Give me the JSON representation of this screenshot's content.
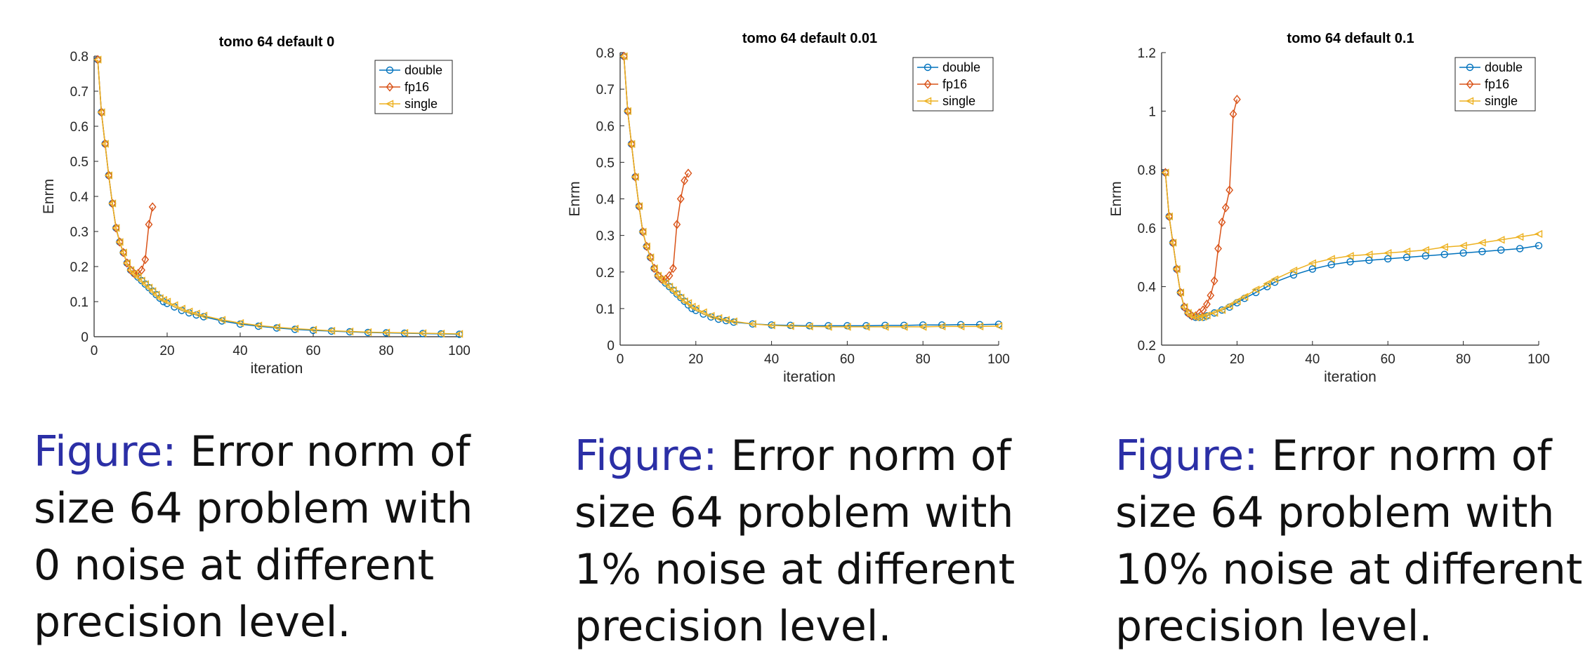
{
  "chart_data": [
    {
      "type": "line",
      "title": "tomo 64 default 0",
      "xlabel": "iteration",
      "ylabel": "Enrm",
      "xlim": [
        0,
        100
      ],
      "ylim": [
        0,
        0.8
      ],
      "xticks": [
        0,
        20,
        40,
        60,
        80,
        100
      ],
      "yticks": [
        0,
        0.1,
        0.2,
        0.3,
        0.4,
        0.5,
        0.6,
        0.7,
        0.8
      ],
      "xtick_labels": [
        "0",
        "20",
        "40",
        "60",
        "80",
        "100"
      ],
      "ytick_labels": [
        "0",
        "0.1",
        "0.2",
        "0.3",
        "0.4",
        "0.5",
        "0.6",
        "0.7",
        "0.8"
      ],
      "legend": "top-right",
      "series": [
        {
          "name": "double",
          "color": "#0072BD",
          "marker": "circle",
          "x": [
            1,
            2,
            3,
            4,
            5,
            6,
            7,
            8,
            9,
            10,
            11,
            12,
            13,
            14,
            15,
            16,
            17,
            18,
            19,
            20,
            22,
            24,
            26,
            28,
            30,
            35,
            40,
            45,
            50,
            55,
            60,
            65,
            70,
            75,
            80,
            85,
            90,
            95,
            100
          ],
          "values": [
            0.79,
            0.64,
            0.55,
            0.46,
            0.38,
            0.31,
            0.27,
            0.24,
            0.21,
            0.19,
            0.18,
            0.17,
            0.16,
            0.15,
            0.14,
            0.13,
            0.12,
            0.11,
            0.1,
            0.095,
            0.085,
            0.075,
            0.068,
            0.062,
            0.057,
            0.045,
            0.036,
            0.03,
            0.025,
            0.021,
            0.018,
            0.016,
            0.014,
            0.012,
            0.011,
            0.01,
            0.009,
            0.008,
            0.007
          ]
        },
        {
          "name": "fp16",
          "color": "#D95319",
          "marker": "diamond",
          "x": [
            1,
            2,
            3,
            4,
            5,
            6,
            7,
            8,
            9,
            10,
            11,
            12,
            13,
            14,
            15,
            16
          ],
          "values": [
            0.79,
            0.64,
            0.55,
            0.46,
            0.38,
            0.31,
            0.27,
            0.24,
            0.21,
            0.19,
            0.18,
            0.18,
            0.19,
            0.22,
            0.32,
            0.37
          ]
        },
        {
          "name": "single",
          "color": "#EDB120",
          "marker": "triangle-left",
          "x": [
            1,
            2,
            3,
            4,
            5,
            6,
            7,
            8,
            9,
            10,
            11,
            12,
            13,
            14,
            15,
            16,
            17,
            18,
            19,
            20,
            22,
            24,
            26,
            28,
            30,
            35,
            40,
            45,
            50,
            55,
            60,
            65,
            70,
            75,
            80,
            85,
            90,
            95,
            100
          ],
          "values": [
            0.79,
            0.64,
            0.55,
            0.46,
            0.38,
            0.31,
            0.27,
            0.24,
            0.21,
            0.19,
            0.18,
            0.17,
            0.16,
            0.15,
            0.14,
            0.13,
            0.12,
            0.11,
            0.105,
            0.1,
            0.09,
            0.08,
            0.072,
            0.066,
            0.06,
            0.048,
            0.039,
            0.032,
            0.027,
            0.023,
            0.02,
            0.017,
            0.015,
            0.013,
            0.012,
            0.011,
            0.01,
            0.009,
            0.008
          ]
        }
      ]
    },
    {
      "type": "line",
      "title": "tomo 64 default 0.01",
      "xlabel": "iteration",
      "ylabel": "Enrm",
      "xlim": [
        0,
        100
      ],
      "ylim": [
        0,
        0.8
      ],
      "xticks": [
        0,
        20,
        40,
        60,
        80,
        100
      ],
      "yticks": [
        0,
        0.1,
        0.2,
        0.3,
        0.4,
        0.5,
        0.6,
        0.7,
        0.8
      ],
      "xtick_labels": [
        "0",
        "20",
        "40",
        "60",
        "80",
        "100"
      ],
      "ytick_labels": [
        "0",
        "0.1",
        "0.2",
        "0.3",
        "0.4",
        "0.5",
        "0.6",
        "0.7",
        "0.8"
      ],
      "legend": "top-right",
      "series": [
        {
          "name": "double",
          "color": "#0072BD",
          "marker": "circle",
          "x": [
            1,
            2,
            3,
            4,
            5,
            6,
            7,
            8,
            9,
            10,
            11,
            12,
            13,
            14,
            15,
            16,
            17,
            18,
            19,
            20,
            22,
            24,
            26,
            28,
            30,
            35,
            40,
            45,
            50,
            55,
            60,
            65,
            70,
            75,
            80,
            85,
            90,
            95,
            100
          ],
          "values": [
            0.79,
            0.64,
            0.55,
            0.46,
            0.38,
            0.31,
            0.27,
            0.24,
            0.21,
            0.19,
            0.18,
            0.17,
            0.16,
            0.15,
            0.14,
            0.13,
            0.12,
            0.11,
            0.1,
            0.095,
            0.085,
            0.077,
            0.071,
            0.067,
            0.063,
            0.058,
            0.055,
            0.054,
            0.053,
            0.053,
            0.053,
            0.053,
            0.054,
            0.054,
            0.055,
            0.055,
            0.056,
            0.056,
            0.057
          ]
        },
        {
          "name": "fp16",
          "color": "#D95319",
          "marker": "diamond",
          "x": [
            1,
            2,
            3,
            4,
            5,
            6,
            7,
            8,
            9,
            10,
            11,
            12,
            13,
            14,
            15,
            16,
            17,
            18
          ],
          "values": [
            0.79,
            0.64,
            0.55,
            0.46,
            0.38,
            0.31,
            0.27,
            0.24,
            0.21,
            0.19,
            0.18,
            0.18,
            0.19,
            0.21,
            0.33,
            0.4,
            0.45,
            0.47
          ]
        },
        {
          "name": "single",
          "color": "#EDB120",
          "marker": "triangle-left",
          "x": [
            1,
            2,
            3,
            4,
            5,
            6,
            7,
            8,
            9,
            10,
            11,
            12,
            13,
            14,
            15,
            16,
            17,
            18,
            19,
            20,
            22,
            24,
            26,
            28,
            30,
            35,
            40,
            45,
            50,
            55,
            60,
            65,
            70,
            75,
            80,
            85,
            90,
            95,
            100
          ],
          "values": [
            0.79,
            0.64,
            0.55,
            0.46,
            0.38,
            0.31,
            0.27,
            0.24,
            0.21,
            0.19,
            0.18,
            0.17,
            0.16,
            0.15,
            0.14,
            0.13,
            0.12,
            0.115,
            0.105,
            0.1,
            0.09,
            0.08,
            0.074,
            0.069,
            0.065,
            0.058,
            0.054,
            0.052,
            0.051,
            0.05,
            0.05,
            0.05,
            0.05,
            0.05,
            0.05,
            0.051,
            0.051,
            0.051,
            0.052
          ]
        }
      ]
    },
    {
      "type": "line",
      "title": "tomo 64 default 0.1",
      "xlabel": "iteration",
      "ylabel": "Enrm",
      "xlim": [
        0,
        100
      ],
      "ylim": [
        0.2,
        1.2
      ],
      "xticks": [
        0,
        20,
        40,
        60,
        80,
        100
      ],
      "yticks": [
        0.2,
        0.4,
        0.6,
        0.8,
        1,
        1.2
      ],
      "xtick_labels": [
        "0",
        "20",
        "40",
        "60",
        "80",
        "100"
      ],
      "ytick_labels": [
        "0.2",
        "0.4",
        "0.6",
        "0.8",
        "1",
        "1.2"
      ],
      "legend": "top-right",
      "series": [
        {
          "name": "double",
          "color": "#0072BD",
          "marker": "circle",
          "x": [
            1,
            2,
            3,
            4,
            5,
            6,
            7,
            8,
            9,
            10,
            11,
            12,
            14,
            16,
            18,
            20,
            22,
            25,
            28,
            30,
            35,
            40,
            45,
            50,
            55,
            60,
            65,
            70,
            75,
            80,
            85,
            90,
            95,
            100
          ],
          "values": [
            0.79,
            0.64,
            0.55,
            0.46,
            0.38,
            0.33,
            0.31,
            0.3,
            0.295,
            0.295,
            0.295,
            0.3,
            0.31,
            0.32,
            0.33,
            0.345,
            0.36,
            0.38,
            0.4,
            0.415,
            0.44,
            0.46,
            0.475,
            0.485,
            0.49,
            0.495,
            0.5,
            0.505,
            0.51,
            0.515,
            0.52,
            0.525,
            0.53,
            0.54
          ]
        },
        {
          "name": "fp16",
          "color": "#D95319",
          "marker": "diamond",
          "x": [
            1,
            2,
            3,
            4,
            5,
            6,
            7,
            8,
            9,
            10,
            11,
            12,
            13,
            14,
            15,
            16,
            17,
            18,
            19,
            20
          ],
          "values": [
            0.79,
            0.64,
            0.55,
            0.46,
            0.38,
            0.33,
            0.31,
            0.3,
            0.3,
            0.31,
            0.32,
            0.34,
            0.37,
            0.42,
            0.53,
            0.62,
            0.67,
            0.73,
            0.99,
            1.04
          ]
        },
        {
          "name": "single",
          "color": "#EDB120",
          "marker": "triangle-left",
          "x": [
            1,
            2,
            3,
            4,
            5,
            6,
            7,
            8,
            9,
            10,
            11,
            12,
            14,
            16,
            18,
            20,
            22,
            25,
            28,
            30,
            35,
            40,
            45,
            50,
            55,
            60,
            65,
            70,
            75,
            80,
            85,
            90,
            95,
            100
          ],
          "values": [
            0.79,
            0.64,
            0.55,
            0.46,
            0.38,
            0.33,
            0.31,
            0.3,
            0.295,
            0.295,
            0.297,
            0.302,
            0.31,
            0.32,
            0.335,
            0.35,
            0.365,
            0.39,
            0.41,
            0.425,
            0.455,
            0.48,
            0.495,
            0.505,
            0.51,
            0.515,
            0.52,
            0.525,
            0.535,
            0.54,
            0.55,
            0.56,
            0.57,
            0.58
          ]
        }
      ]
    }
  ],
  "captions": [
    {
      "lead": "Figure:",
      "line1": "Error norm of",
      "line2": "size 64 problem with",
      "line3": "0 noise at different",
      "line4": "precision level."
    },
    {
      "lead": "Figure:",
      "line1": "Error norm of",
      "line2": "size 64 problem with",
      "line3": "1% noise at different",
      "line4": "precision level."
    },
    {
      "lead": "Figure:",
      "line1": "Error norm of",
      "line2": "size 64 problem with",
      "line3": "10% noise at different",
      "line4": "precision level."
    }
  ]
}
